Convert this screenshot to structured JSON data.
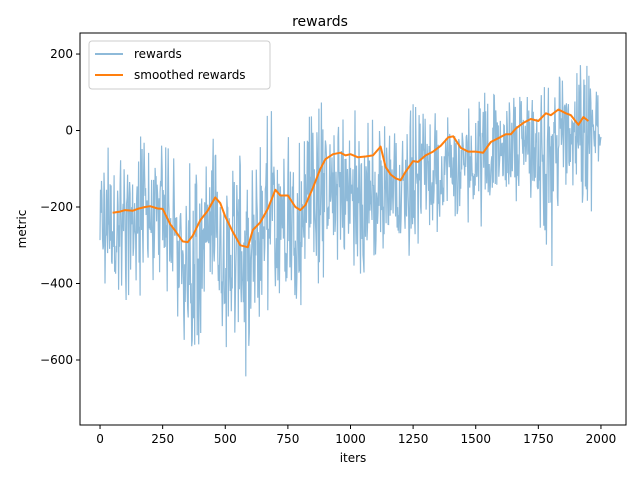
{
  "chart_data": {
    "type": "line",
    "title": "rewards",
    "xlabel": "iters",
    "ylabel": "metric",
    "xlim": [
      -80,
      2100
    ],
    "ylim": [
      -770,
      255
    ],
    "xticks": [
      0,
      250,
      500,
      750,
      1000,
      1250,
      1500,
      1750,
      2000
    ],
    "yticks": [
      -600,
      -400,
      -200,
      0,
      200
    ],
    "xtick_labels": [
      "0",
      "250",
      "500",
      "750",
      "1000",
      "1250",
      "1500",
      "1750",
      "2000"
    ],
    "ytick_labels": [
      "−600",
      "−400",
      "−200",
      "0",
      "200"
    ],
    "grid": false,
    "legend": {
      "position": "top-left",
      "entries": [
        "rewards",
        "smoothed rewards"
      ]
    },
    "series": [
      {
        "name": "rewards",
        "color": "#8ebad9",
        "note_pattern": "noisy raw per-iteration rewards",
        "envelope": {
          "x": [
            0,
            50,
            100,
            150,
            200,
            250,
            300,
            350,
            400,
            450,
            500,
            550,
            600,
            650,
            700,
            750,
            800,
            850,
            900,
            950,
            1000,
            1050,
            1100,
            1150,
            1200,
            1250,
            1300,
            1350,
            1400,
            1450,
            1500,
            1550,
            1600,
            1650,
            1700,
            1750,
            1800,
            1850,
            1900,
            1950,
            2000
          ],
          "low": [
            -420,
            -490,
            -470,
            -450,
            -430,
            -440,
            -480,
            -600,
            -560,
            -500,
            -580,
            -640,
            -720,
            -500,
            -470,
            -420,
            -460,
            -440,
            -380,
            -340,
            -400,
            -380,
            -460,
            -250,
            -360,
            -320,
            -300,
            -280,
            -260,
            -230,
            -260,
            -240,
            -200,
            -190,
            -170,
            -250,
            -380,
            -200,
            -140,
            -270,
            -80
          ],
          "high": [
            -80,
            20,
            -60,
            0,
            -20,
            -30,
            -60,
            -80,
            -60,
            -20,
            -40,
            -40,
            -80,
            40,
            60,
            50,
            -10,
            60,
            90,
            60,
            60,
            40,
            40,
            30,
            -10,
            70,
            40,
            60,
            90,
            80,
            70,
            120,
            80,
            90,
            130,
            150,
            140,
            170,
            210,
            190,
            100
          ]
        },
        "values_note": "raw series sampled per iteration 0..2000"
      },
      {
        "name": "smoothed rewards",
        "color": "#ff7f0e",
        "x": [
          50,
          80,
          100,
          130,
          150,
          180,
          200,
          230,
          250,
          280,
          300,
          330,
          350,
          370,
          400,
          430,
          460,
          480,
          500,
          530,
          560,
          590,
          610,
          640,
          670,
          700,
          720,
          750,
          780,
          800,
          820,
          850,
          880,
          900,
          930,
          960,
          980,
          1000,
          1030,
          1060,
          1090,
          1120,
          1140,
          1160,
          1180,
          1200,
          1220,
          1250,
          1270,
          1300,
          1330,
          1360,
          1390,
          1410,
          1440,
          1470,
          1500,
          1530,
          1560,
          1590,
          1620,
          1640,
          1660,
          1690,
          1720,
          1750,
          1780,
          1800,
          1830,
          1860,
          1880,
          1910,
          1930,
          1950
        ],
        "values": [
          -215,
          -212,
          -208,
          -210,
          -205,
          -200,
          -198,
          -204,
          -205,
          -245,
          -262,
          -290,
          -292,
          -275,
          -235,
          -210,
          -175,
          -190,
          -225,
          -265,
          -300,
          -305,
          -260,
          -240,
          -205,
          -155,
          -170,
          -170,
          -200,
          -208,
          -195,
          -150,
          -100,
          -75,
          -62,
          -58,
          -65,
          -62,
          -70,
          -68,
          -65,
          -42,
          -95,
          -115,
          -125,
          -130,
          -108,
          -80,
          -82,
          -65,
          -55,
          -40,
          -18,
          -15,
          -45,
          -55,
          -55,
          -58,
          -30,
          -20,
          -10,
          -10,
          5,
          20,
          30,
          25,
          45,
          40,
          55,
          45,
          40,
          15,
          35,
          25
        ]
      }
    ]
  }
}
